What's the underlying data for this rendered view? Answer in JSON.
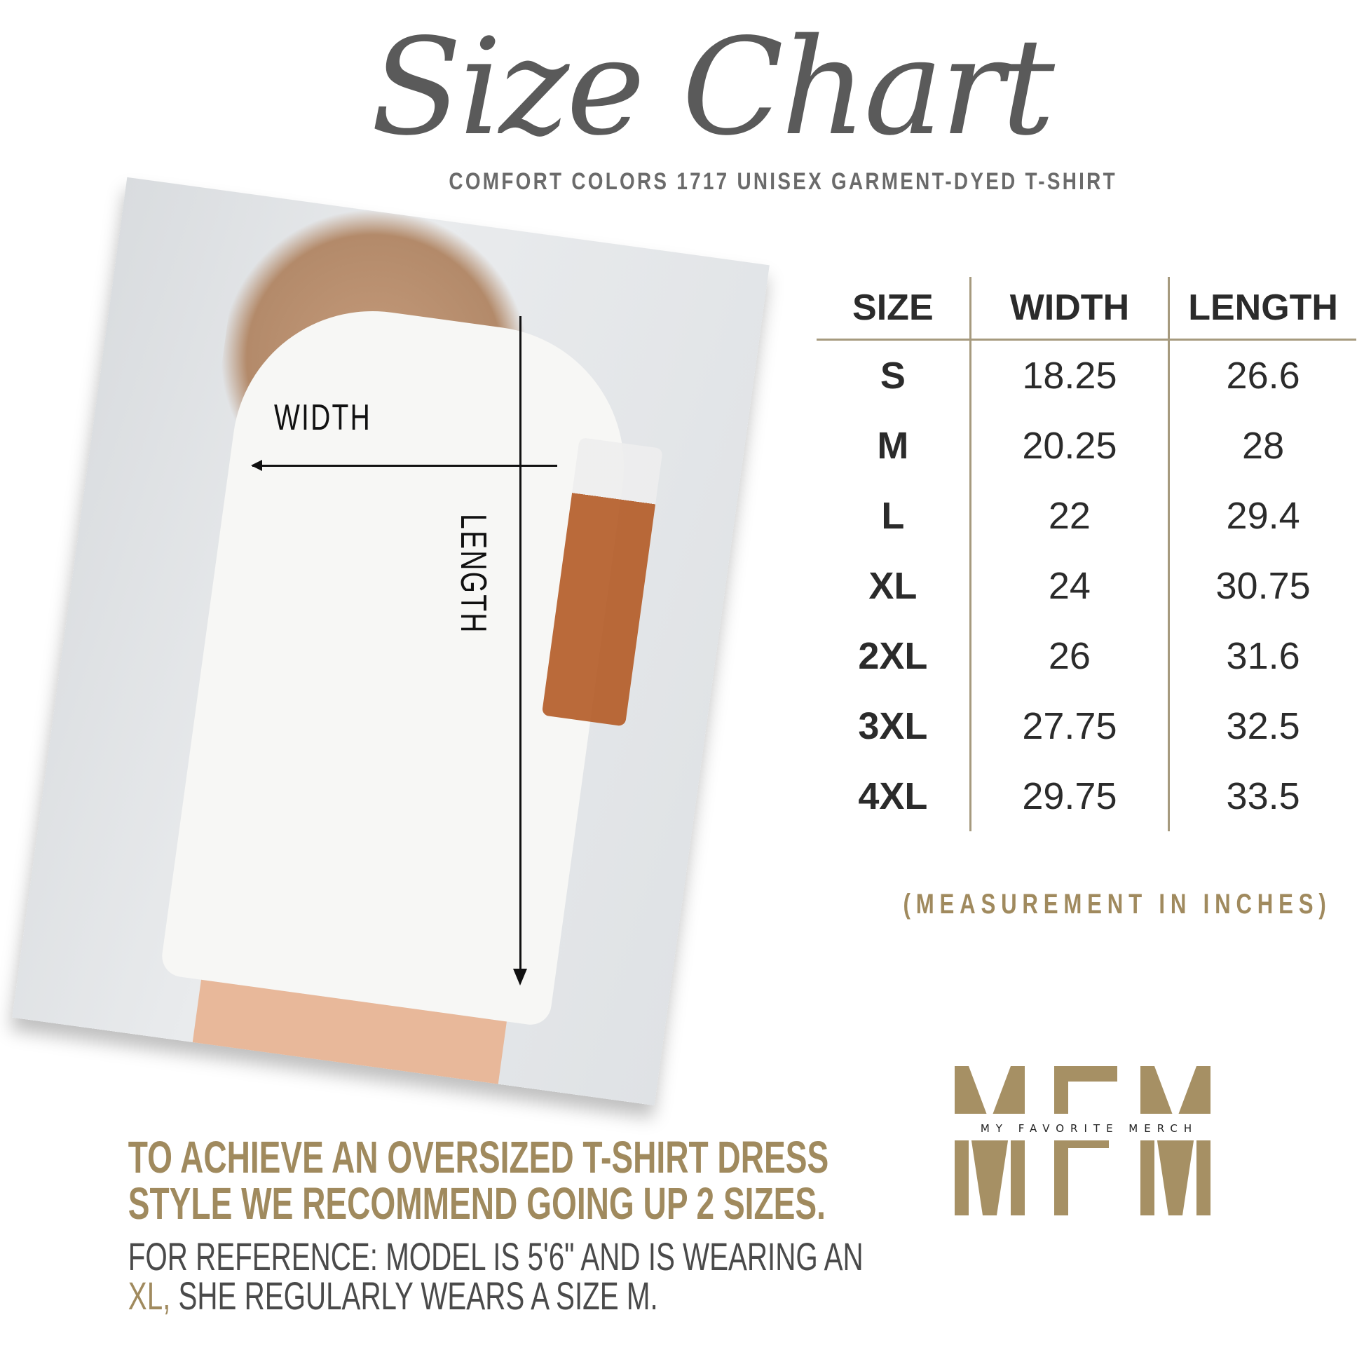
{
  "title": "Size Chart",
  "subtitle": "COMFORT COLORS 1717 UNISEX GARMENT-DYED T-SHIRT",
  "photo": {
    "width_label": "WIDTH",
    "length_label": "LENGTH"
  },
  "table": {
    "headers": [
      "SIZE",
      "WIDTH",
      "LENGTH"
    ],
    "rows": [
      [
        "S",
        "18.25",
        "26.6"
      ],
      [
        "M",
        "20.25",
        "28"
      ],
      [
        "L",
        "22",
        "29.4"
      ],
      [
        "XL",
        "24",
        "30.75"
      ],
      [
        "2XL",
        "26",
        "31.6"
      ],
      [
        "3XL",
        "27.75",
        "32.5"
      ],
      [
        "4XL",
        "29.75",
        "33.5"
      ]
    ]
  },
  "measurement_note": "(MEASUREMENT IN INCHES)",
  "tip": {
    "line1": "TO ACHIEVE AN OVERSIZED T-SHIRT DRESS",
    "line2": "STYLE WE RECOMMEND GOING UP 2 SIZES."
  },
  "reference": {
    "line1": "FOR REFERENCE: MODEL IS 5'6\" AND IS WEARING AN",
    "highlight": "XL,",
    "line2_rest": " SHE REGULARLY WEARS A SIZE M."
  },
  "logo": {
    "letters": "MFM",
    "tagline": "MY FAVORITE MERCH"
  },
  "colors": {
    "gold": "#a08a5e",
    "text": "#2b2b2b",
    "title": "#5a5a5a"
  }
}
